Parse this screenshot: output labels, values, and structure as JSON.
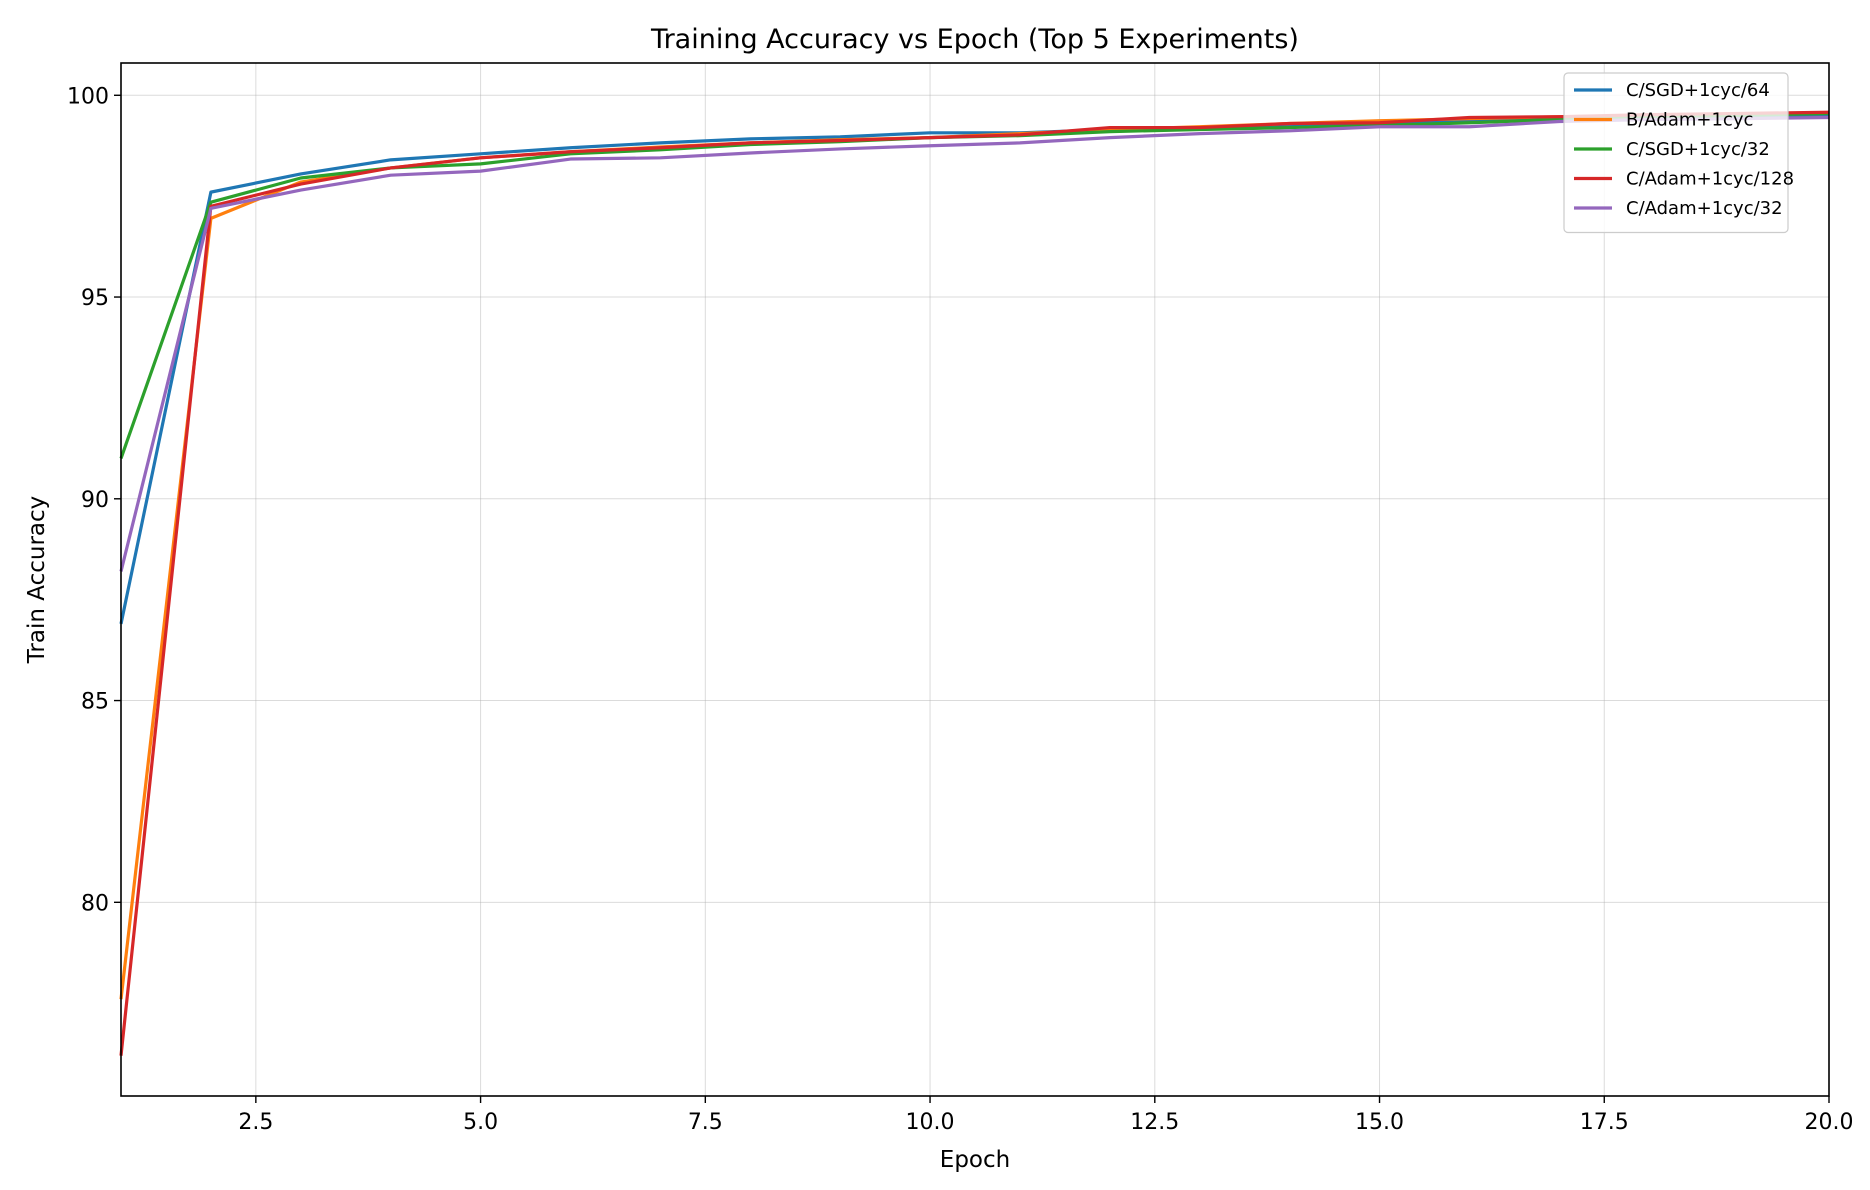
{
  "chart_data": {
    "type": "line",
    "title": "Training Accuracy vs Epoch (Top 5 Experiments)",
    "xlabel": "Epoch",
    "ylabel": "Train Accuracy",
    "xlim": [
      1,
      20
    ],
    "ylim": [
      75.2,
      100.8
    ],
    "xticks": [
      2.5,
      5.0,
      7.5,
      10.0,
      12.5,
      15.0,
      17.5,
      20.0
    ],
    "xtick_labels": [
      "2.5",
      "5.0",
      "7.5",
      "10.0",
      "12.5",
      "15.0",
      "17.5",
      "20.0"
    ],
    "yticks": [
      80,
      85,
      90,
      95,
      100
    ],
    "ytick_labels": [
      "80",
      "85",
      "90",
      "95",
      "100"
    ],
    "grid": true,
    "legend_position": "top-right",
    "x": [
      1,
      2,
      3,
      4,
      5,
      6,
      7,
      8,
      9,
      10,
      11,
      12,
      13,
      14,
      15,
      16,
      17,
      18,
      19,
      20
    ],
    "series": [
      {
        "name": "C/SGD+1cyc/64",
        "color": "#1f77b4",
        "values": [
          86.9,
          97.6,
          98.05,
          98.4,
          98.55,
          98.7,
          98.82,
          98.92,
          98.97,
          99.07,
          99.07,
          99.15,
          99.2,
          99.27,
          99.32,
          99.37,
          99.42,
          99.45,
          99.47,
          99.5
        ]
      },
      {
        "name": "B/Adam+1cyc",
        "color": "#ff7f0e",
        "values": [
          77.6,
          96.95,
          97.85,
          98.2,
          98.45,
          98.6,
          98.72,
          98.82,
          98.9,
          98.95,
          99.05,
          99.15,
          99.22,
          99.3,
          99.37,
          99.42,
          99.47,
          99.5,
          99.52,
          99.55
        ]
      },
      {
        "name": "C/SGD+1cyc/32",
        "color": "#2ca02c",
        "values": [
          91.0,
          97.35,
          97.95,
          98.2,
          98.3,
          98.55,
          98.65,
          98.78,
          98.85,
          98.95,
          99.0,
          99.1,
          99.15,
          99.2,
          99.25,
          99.32,
          99.4,
          99.45,
          99.5,
          99.55
        ]
      },
      {
        "name": "C/Adam+1cyc/128",
        "color": "#d62728",
        "values": [
          76.2,
          97.25,
          97.8,
          98.2,
          98.45,
          98.6,
          98.7,
          98.82,
          98.88,
          98.95,
          99.02,
          99.2,
          99.2,
          99.3,
          99.32,
          99.45,
          99.47,
          99.52,
          99.55,
          99.58
        ]
      },
      {
        "name": "C/Adam+1cyc/32",
        "color": "#9467bd",
        "values": [
          88.2,
          97.2,
          97.65,
          98.02,
          98.12,
          98.42,
          98.45,
          98.57,
          98.67,
          98.75,
          98.82,
          98.95,
          99.05,
          99.12,
          99.22,
          99.22,
          99.35,
          99.4,
          99.42,
          99.45
        ]
      }
    ]
  }
}
